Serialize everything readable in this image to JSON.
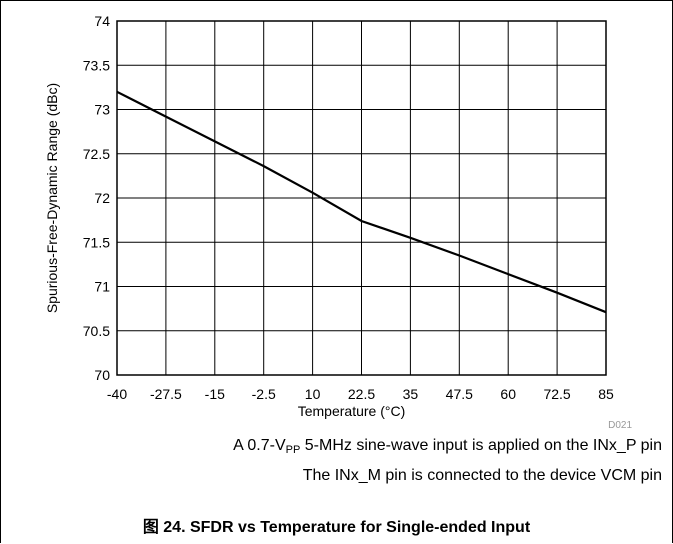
{
  "chart_data": {
    "type": "line",
    "xlabel": "Temperature (°C)",
    "ylabel": "Spurious-Free-Dynamic Range (dBc)",
    "xlim": [
      -40,
      85
    ],
    "ylim": [
      70,
      74
    ],
    "x_ticks": [
      "-40",
      "-27.5",
      "-15",
      "-2.5",
      "10",
      "22.5",
      "35",
      "47.5",
      "60",
      "72.5",
      "85"
    ],
    "y_ticks": [
      "70",
      "70.5",
      "71",
      "71.5",
      "72",
      "72.5",
      "73",
      "73.5",
      "74"
    ],
    "grid": true,
    "series": [
      {
        "x": [
          -40,
          -27.5,
          -15,
          -2.5,
          10,
          22.5,
          35,
          47.5,
          60,
          72.5,
          85
        ],
        "y": [
          73.2,
          72.92,
          72.64,
          72.36,
          72.06,
          71.74,
          71.55,
          71.35,
          71.14,
          70.93,
          70.71
        ]
      }
    ]
  },
  "figure_id": "D021",
  "note_line1": {
    "pre": "A 0.7-V",
    "sub": "PP",
    "post": " 5-MHz sine-wave input is applied on the INx_P pin"
  },
  "note_line2": "The INx_M pin is connected to the device VCM pin",
  "caption": "图 24. SFDR vs Temperature for Single-ended Input",
  "colors": {
    "line": "#000000",
    "grid": "#000000"
  }
}
